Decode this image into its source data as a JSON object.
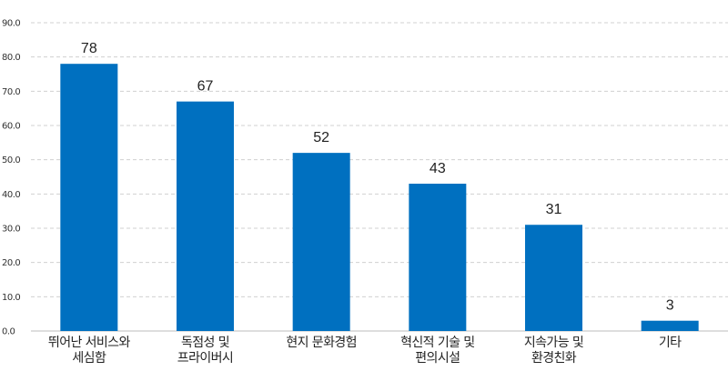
{
  "chart_data": {
    "type": "bar",
    "title": "",
    "xlabel": "",
    "ylabel": "",
    "ylim": [
      0,
      90
    ],
    "yticks": [
      "0.0",
      "10.0",
      "20.0",
      "30.0",
      "40.0",
      "50.0",
      "60.0",
      "70.0",
      "80.0",
      "90.0"
    ],
    "categories": [
      [
        "뛰어난 서비스와",
        "세심함"
      ],
      [
        "독점성 및",
        "프라이버시"
      ],
      [
        "현지 문화경험"
      ],
      [
        "혁신적 기술 및",
        "편의시설"
      ],
      [
        "지속가능 및",
        "환경친화"
      ],
      [
        "기타"
      ]
    ],
    "values": [
      78,
      67,
      52,
      43,
      31,
      3
    ],
    "grid": true,
    "legend": "none",
    "bar_color": "#0070C0"
  }
}
